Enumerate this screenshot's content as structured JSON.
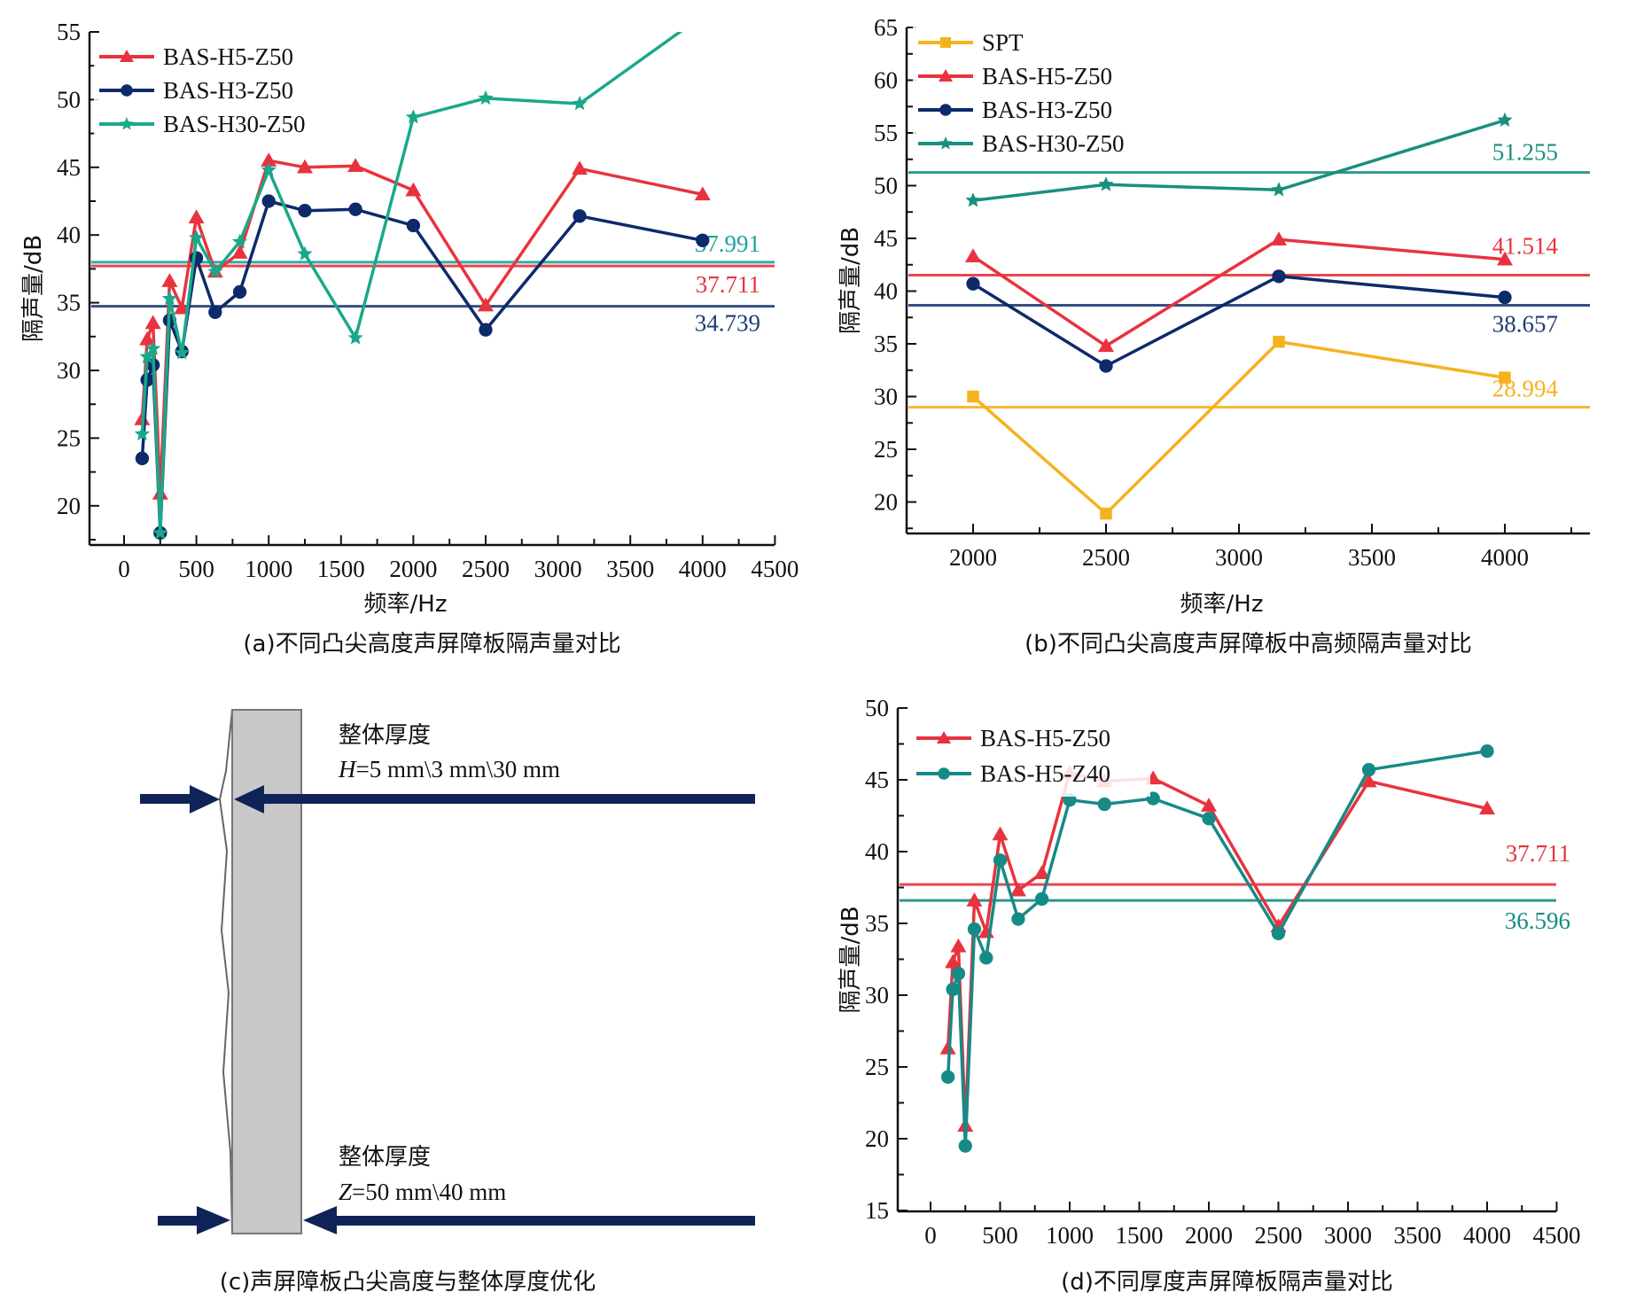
{
  "chart_data": [
    {
      "panel": "a",
      "type": "line",
      "caption": "(a)不同凸尖高度声屏障板隔声量对比",
      "xlabel": "频率/Hz",
      "ylabel": "隔声量/dB",
      "xlim": [
        -250,
        4500
      ],
      "ylim": [
        17.2,
        55
      ],
      "xticks": [
        0,
        500,
        1000,
        1500,
        2000,
        2500,
        3000,
        3500,
        4000,
        4500
      ],
      "yticks": [
        20,
        25,
        30,
        35,
        40,
        45,
        50,
        55
      ],
      "legend_position": "top-left",
      "series": [
        {
          "name": "BAS-H5-Z50",
          "color": "#e8333e",
          "marker": "triangle",
          "x": [
            125,
            160,
            200,
            250,
            315,
            400,
            500,
            630,
            800,
            1000,
            1250,
            1600,
            2000,
            2500,
            3150,
            4000
          ],
          "y": [
            26.4,
            32.3,
            33.5,
            20.9,
            36.6,
            34.6,
            41.3,
            37.3,
            38.7,
            45.5,
            45.0,
            45.1,
            43.3,
            34.8,
            44.9,
            43.0
          ]
        },
        {
          "name": "BAS-H3-Z50",
          "color": "#0d2a6b",
          "marker": "circle",
          "x": [
            125,
            160,
            200,
            250,
            315,
            400,
            500,
            630,
            800,
            1000,
            1250,
            1600,
            2000,
            2500,
            3150,
            4000
          ],
          "y": [
            23.5,
            29.3,
            30.4,
            18.0,
            33.7,
            31.4,
            38.3,
            34.3,
            35.8,
            42.5,
            41.8,
            41.9,
            40.7,
            33.0,
            41.4,
            39.6
          ]
        },
        {
          "name": "BAS-H30-Z50",
          "color": "#1aa88a",
          "marker": "star",
          "x": [
            125,
            160,
            200,
            250,
            315,
            400,
            500,
            630,
            800,
            1000,
            1250,
            1600,
            2000,
            2500,
            3150,
            4000
          ],
          "y": [
            25.3,
            31.0,
            31.6,
            18.0,
            35.3,
            31.3,
            39.8,
            37.3,
            39.5,
            44.8,
            38.6,
            32.4,
            48.7,
            50.1,
            49.7,
            56.2
          ]
        }
      ],
      "reference_lines": [
        {
          "value": 37.991,
          "label": "37.991",
          "color": "#1aa49c"
        },
        {
          "value": 37.711,
          "label": "37.711",
          "color": "#e8333e"
        },
        {
          "value": 34.739,
          "label": "34.739",
          "color": "#1f3d73"
        }
      ]
    },
    {
      "panel": "b",
      "type": "line",
      "caption": "(b)不同凸尖高度声屏障板中高频隔声量对比",
      "xlabel": "频率/Hz",
      "ylabel": "隔声量/dB",
      "xlim": [
        1750,
        4250
      ],
      "ylim": [
        17,
        65
      ],
      "xticks": [
        2000,
        2500,
        3000,
        3500,
        4000
      ],
      "yticks": [
        20,
        25,
        30,
        35,
        40,
        45,
        50,
        55,
        60,
        65
      ],
      "legend_position": "top-left",
      "series": [
        {
          "name": "SPT",
          "color": "#f5b220",
          "marker": "square",
          "x": [
            2000,
            2500,
            3150,
            4000
          ],
          "y": [
            30.0,
            18.9,
            35.2,
            31.8
          ]
        },
        {
          "name": "BAS-H5-Z50",
          "color": "#e8333e",
          "marker": "triangle",
          "x": [
            2000,
            2500,
            3150,
            4000
          ],
          "y": [
            43.3,
            34.8,
            44.9,
            43.0
          ]
        },
        {
          "name": "BAS-H3-Z50",
          "color": "#0d2a6b",
          "marker": "circle",
          "x": [
            2000,
            2500,
            3150,
            4000
          ],
          "y": [
            40.7,
            32.9,
            41.4,
            39.4
          ]
        },
        {
          "name": "BAS-H30-Z50",
          "color": "#1a8f80",
          "marker": "star",
          "x": [
            2000,
            2500,
            3150,
            4000
          ],
          "y": [
            48.6,
            50.1,
            49.6,
            56.2
          ]
        }
      ],
      "reference_lines": [
        {
          "value": 51.255,
          "label": "51.255",
          "color": "#1a8f80"
        },
        {
          "value": 41.514,
          "label": "41.514",
          "color": "#e8333e"
        },
        {
          "value": 38.657,
          "label": "38.657",
          "color": "#1f3d73"
        },
        {
          "value": 28.994,
          "label": "28.994",
          "color": "#f5b220"
        }
      ]
    },
    {
      "panel": "d",
      "type": "line",
      "caption": "(d)不同厚度声屏障板隔声量对比",
      "xlabel": "",
      "ylabel": "隔声量/dB",
      "xlim": [
        -250,
        4500
      ],
      "ylim": [
        15,
        50
      ],
      "xticks": [
        0,
        500,
        1000,
        1500,
        2000,
        2500,
        3000,
        3500,
        4000,
        4500
      ],
      "yticks": [
        15,
        20,
        25,
        30,
        35,
        40,
        45,
        50
      ],
      "legend_position": "top-left",
      "series": [
        {
          "name": "BAS-H5-Z50",
          "color": "#e8333e",
          "marker": "triangle",
          "x": [
            125,
            160,
            200,
            250,
            315,
            400,
            500,
            630,
            800,
            1000,
            1250,
            1600,
            2000,
            2500,
            3150,
            4000
          ],
          "y": [
            26.3,
            32.3,
            33.4,
            20.9,
            36.6,
            34.4,
            41.2,
            37.3,
            38.5,
            45.5,
            44.9,
            45.1,
            43.2,
            34.8,
            44.9,
            43.0
          ]
        },
        {
          "name": "BAS-H5-Z40",
          "color": "#168a86",
          "marker": "circle",
          "x": [
            125,
            160,
            200,
            250,
            315,
            400,
            500,
            630,
            800,
            1000,
            1250,
            1600,
            2000,
            2500,
            3150,
            4000
          ],
          "y": [
            24.3,
            30.4,
            31.5,
            19.5,
            34.6,
            32.6,
            39.4,
            35.3,
            36.7,
            43.6,
            43.3,
            43.7,
            42.3,
            34.3,
            45.7,
            47.0
          ]
        }
      ],
      "reference_lines": [
        {
          "value": 37.711,
          "label": "37.711",
          "color": "#e8333e"
        },
        {
          "value": 36.596,
          "label": "36.596",
          "color": "#168a86"
        }
      ]
    }
  ],
  "diagram_c": {
    "caption": "(c)声屏障板凸尖高度与整体厚度优化",
    "top_title": "整体厚度",
    "top_formula_var": "H",
    "top_formula_rest": "=5 mm\\3 mm\\30 mm",
    "bottom_title": "整体厚度",
    "bottom_formula_var": "Z",
    "bottom_formula_rest": "=50 mm\\40 mm",
    "arrow_color": "#0f2356",
    "panel_fill": "#c8c8c8"
  }
}
